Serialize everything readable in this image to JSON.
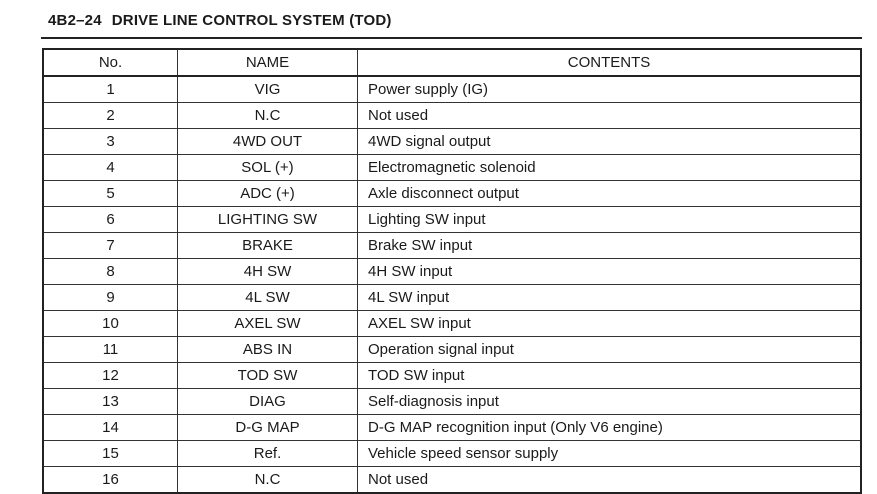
{
  "header": {
    "code": "4B2–24",
    "title": "DRIVE LINE CONTROL SYSTEM (TOD)"
  },
  "table": {
    "columns": [
      "No.",
      "NAME",
      "CONTENTS"
    ],
    "rows": [
      [
        "1",
        "VIG",
        "Power supply (IG)"
      ],
      [
        "2",
        "N.C",
        "Not used"
      ],
      [
        "3",
        "4WD OUT",
        "4WD signal output"
      ],
      [
        "4",
        "SOL (+)",
        "Electromagnetic solenoid"
      ],
      [
        "5",
        "ADC (+)",
        "Axle disconnect output"
      ],
      [
        "6",
        "LIGHTING SW",
        "Lighting SW input"
      ],
      [
        "7",
        "BRAKE",
        "Brake SW input"
      ],
      [
        "8",
        "4H SW",
        "4H SW input"
      ],
      [
        "9",
        "4L SW",
        "4L SW input"
      ],
      [
        "10",
        "AXEL SW",
        "AXEL SW input"
      ],
      [
        "11",
        "ABS IN",
        "Operation signal input"
      ],
      [
        "12",
        "TOD SW",
        "TOD SW input"
      ],
      [
        "13",
        "DIAG",
        "Self-diagnosis input"
      ],
      [
        "14",
        "D-G MAP",
        "D-G MAP recognition input (Only V6 engine)"
      ],
      [
        "15",
        "Ref.",
        "Vehicle speed sensor supply"
      ],
      [
        "16",
        "N.C",
        "Not used"
      ]
    ]
  }
}
